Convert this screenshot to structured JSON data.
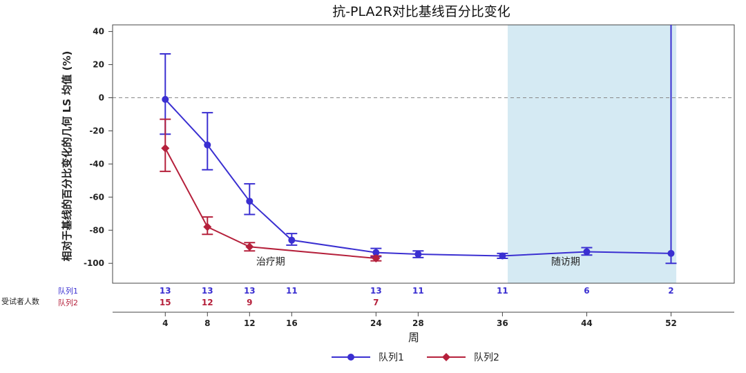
{
  "chart_data": {
    "type": "line",
    "title": "抗-PLA2R对比基线百分比变化",
    "xlabel": "周",
    "ylabel": "相对于基线的百分比变化的几何 LS 均值 (%)",
    "x_ticks": [
      4,
      8,
      12,
      16,
      24,
      28,
      36,
      44,
      52
    ],
    "y_ticks": [
      40,
      20,
      0,
      -20,
      -40,
      -60,
      -80,
      -100
    ],
    "xlim": [
      -1,
      58
    ],
    "ylim": [
      -112,
      44
    ],
    "reference_line": 0,
    "grid": false,
    "legend_position": "bottom-center",
    "series": [
      {
        "name": "队列1",
        "color": "#3a2fd1",
        "marker": "circle",
        "x": [
          4,
          8,
          12,
          16,
          24,
          28,
          36,
          44,
          52
        ],
        "y": [
          -1,
          -28.5,
          -62.5,
          -86,
          -93.5,
          -94.5,
          -95.5,
          -93,
          -94
        ],
        "error_low": [
          -22,
          -43.5,
          -70.5,
          -89,
          -96,
          -96.5,
          -97,
          -95,
          -100
        ],
        "error_high": [
          26.5,
          -9,
          -52,
          -82,
          -91,
          -92.5,
          -94,
          -90.5,
          44
        ]
      },
      {
        "name": "队列2",
        "color": "#b5203b",
        "marker": "diamond",
        "x": [
          4,
          8,
          12,
          24
        ],
        "y": [
          -30.5,
          -78,
          -90,
          -97
        ],
        "error_low": [
          -44.5,
          -82.5,
          -92.5,
          -98.5
        ],
        "error_high": [
          -13,
          -72,
          -87.5,
          -95.5
        ]
      }
    ],
    "phases": [
      {
        "label": "治疗期",
        "x_start": -1,
        "x_end": 36.5,
        "label_x": 14,
        "label_y": -101,
        "shaded": false
      },
      {
        "label": "随访期",
        "x_start": 36.5,
        "x_end": 52.5,
        "label_x": 42,
        "label_y": -101,
        "shaded": true,
        "color": "#d5eaf3"
      }
    ],
    "subjects_table": {
      "label": "受试者人数",
      "rows": [
        {
          "name": "队列1",
          "color": "#3a2fd1",
          "weeks": [
            4,
            8,
            12,
            16,
            24,
            28,
            36,
            44,
            52
          ],
          "counts": [
            "13",
            "13",
            "13",
            "11",
            "13",
            "11",
            "11",
            "6",
            "2"
          ]
        },
        {
          "name": "队列2",
          "color": "#b5203b",
          "weeks": [
            4,
            8,
            12,
            24
          ],
          "counts": [
            "15",
            "12",
            "9",
            "7"
          ]
        }
      ]
    }
  }
}
